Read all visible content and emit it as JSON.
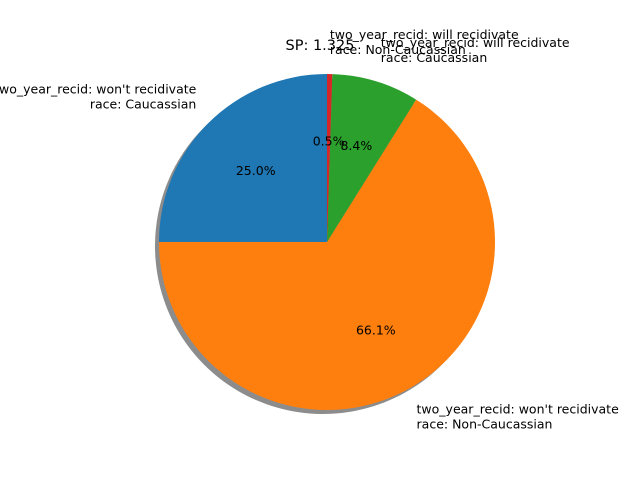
{
  "chart_data": {
    "type": "pie",
    "title": "SP: 1.325",
    "shadow": true,
    "start_angle_deg": 90,
    "direction": "counterclockwise",
    "slices": [
      {
        "line1": "two_year_recid: won't recidivate",
        "line2": "race: Caucassian",
        "percent": 25.0,
        "pct_label": "25.0%",
        "color": "#1f77b4"
      },
      {
        "line1": "two_year_recid: won't recidivate",
        "line2": "race: Non-Caucassian",
        "percent": 66.1,
        "pct_label": "66.1%",
        "color": "#ff7f0e"
      },
      {
        "line1": "two_year_recid: will recidivate",
        "line2": "race: Caucassian",
        "percent": 8.4,
        "pct_label": "8.4%",
        "color": "#2ca02c"
      },
      {
        "line1": "two_year_recid: will recidivate",
        "line2": "race: Non-Caucassian",
        "percent": 0.5,
        "pct_label": "0.5%",
        "color": "#d62728"
      }
    ]
  }
}
